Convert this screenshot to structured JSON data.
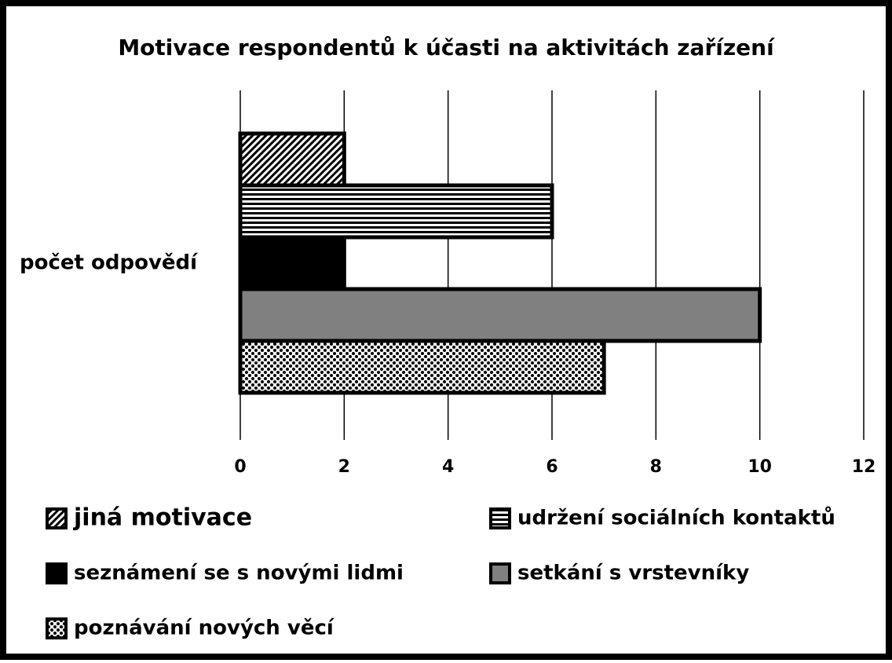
{
  "chart_data": {
    "type": "bar",
    "orientation": "horizontal",
    "title": "Motivace respondentů k účasti na aktivitách zařízení",
    "categories": [
      "počet odpovědí"
    ],
    "series": [
      {
        "name": "jiná motivace",
        "color": "#000000",
        "pattern": "diagonal",
        "values": [
          2
        ]
      },
      {
        "name": "udržení sociálních kontaktů",
        "color": "#000000",
        "pattern": "horizontal",
        "values": [
          6
        ]
      },
      {
        "name": "seznámení se s novými lidmi",
        "color": "#000000",
        "pattern": "solid",
        "values": [
          2
        ]
      },
      {
        "name": "setkání s vrstevníky",
        "color": "#808080",
        "pattern": "solid",
        "values": [
          10
        ]
      },
      {
        "name": "poznávání nových věcí",
        "color": "#000000",
        "pattern": "dots",
        "values": [
          7
        ]
      }
    ],
    "xlim": [
      0,
      12
    ],
    "xticks": [
      0,
      2,
      4,
      6,
      8,
      10,
      12
    ],
    "grid": true,
    "legend": "bottom"
  }
}
